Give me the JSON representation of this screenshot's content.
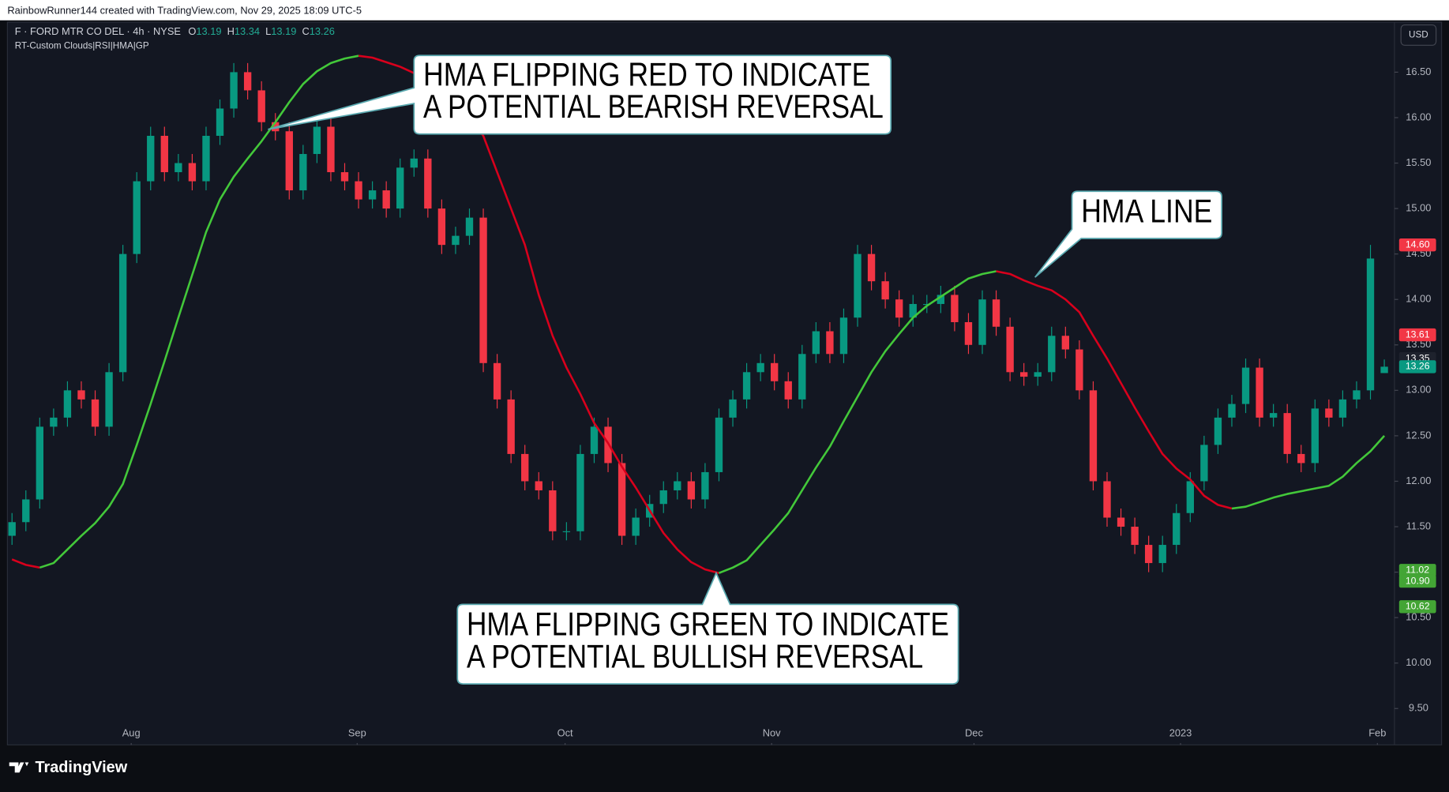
{
  "header": {
    "credit": "RainbowRunner144 created with TradingView.com, Nov 29, 2025 18:09 UTC-5",
    "logo": "TradingView",
    "currency": "USD"
  },
  "chart_data": {
    "type": "candlestick",
    "title": "F · FORD MTR CO DEL · 4h · NYSE",
    "subtitle": "RT-Custom Clouds|RSI|HMA|GP",
    "ohlc_letters": [
      "O",
      "H",
      "L",
      "C"
    ],
    "categories": [
      null,
      null,
      null,
      null,
      null,
      null,
      null,
      null,
      null,
      null,
      null,
      null,
      null,
      null,
      null,
      null,
      null,
      null,
      null,
      null,
      null,
      null,
      null,
      null,
      null,
      null,
      null,
      null,
      null,
      null,
      null,
      null,
      null,
      null,
      null,
      null,
      null,
      null,
      null,
      null,
      null,
      null,
      null,
      null,
      null,
      null,
      null,
      null,
      null,
      null,
      null,
      null,
      null,
      null,
      null,
      null,
      null,
      null,
      null,
      null,
      null,
      null,
      null,
      null,
      null,
      null,
      null,
      null,
      null,
      null,
      null,
      null,
      null,
      null,
      null,
      null,
      null,
      null,
      null,
      null,
      null,
      null,
      null,
      null,
      null,
      null,
      null,
      null,
      null,
      null,
      null,
      null,
      null,
      null,
      null,
      null,
      null,
      null,
      null,
      null
    ],
    "open": [
      11.4,
      11.55,
      11.8,
      12.6,
      12.7,
      13.0,
      12.9,
      12.6,
      13.2,
      14.5,
      15.3,
      15.8,
      15.4,
      15.5,
      15.3,
      15.8,
      16.1,
      16.5,
      16.3,
      15.95,
      15.85,
      15.2,
      15.6,
      15.9,
      15.4,
      15.3,
      15.1,
      15.2,
      15.0,
      15.45,
      15.55,
      15.0,
      14.6,
      14.7,
      14.9,
      13.3,
      12.9,
      12.3,
      12.0,
      11.9,
      11.45,
      11.45,
      12.3,
      12.6,
      12.2,
      11.4,
      11.6,
      11.75,
      11.9,
      12.0,
      11.8,
      12.1,
      12.7,
      12.9,
      13.2,
      13.3,
      13.1,
      12.9,
      13.4,
      13.65,
      13.4,
      13.8,
      14.5,
      14.2,
      14.0,
      13.8,
      13.95,
      13.95,
      14.05,
      13.75,
      13.5,
      14.0,
      13.7,
      13.2,
      13.15,
      13.2,
      13.6,
      13.45,
      13.0,
      12.0,
      11.6,
      11.5,
      11.3,
      11.1,
      11.3,
      11.65,
      12.0,
      12.4,
      12.7,
      12.85,
      13.25,
      12.7,
      12.75,
      12.3,
      12.2,
      12.8,
      12.7,
      12.9,
      13.0,
      13.19
    ],
    "high": [
      11.65,
      11.9,
      12.7,
      12.8,
      13.1,
      13.1,
      13.0,
      13.3,
      14.6,
      15.4,
      15.9,
      15.9,
      15.6,
      15.6,
      15.9,
      16.2,
      16.6,
      16.6,
      16.4,
      16.05,
      15.95,
      15.7,
      16.0,
      16.0,
      15.5,
      15.4,
      15.3,
      15.3,
      15.55,
      15.65,
      15.65,
      15.1,
      14.8,
      15.0,
      15.0,
      13.4,
      13.0,
      12.4,
      12.1,
      12.0,
      11.55,
      12.4,
      12.7,
      12.7,
      12.3,
      11.7,
      11.85,
      12.0,
      12.1,
      12.1,
      12.2,
      12.8,
      13.0,
      13.3,
      13.4,
      13.4,
      13.2,
      13.5,
      13.75,
      13.75,
      13.9,
      14.6,
      14.6,
      14.3,
      14.1,
      14.05,
      14.05,
      14.15,
      14.15,
      13.85,
      14.1,
      14.1,
      13.8,
      13.3,
      13.3,
      13.7,
      13.7,
      13.55,
      13.1,
      12.1,
      11.7,
      11.6,
      11.4,
      11.4,
      11.75,
      12.1,
      12.5,
      12.8,
      12.95,
      13.35,
      13.35,
      12.85,
      12.85,
      12.4,
      12.9,
      12.9,
      13.0,
      13.1,
      14.6,
      13.34
    ],
    "low": [
      11.3,
      11.45,
      11.7,
      12.5,
      12.6,
      12.8,
      12.5,
      12.5,
      13.1,
      14.4,
      15.2,
      15.3,
      15.3,
      15.2,
      15.2,
      15.7,
      16.0,
      16.2,
      15.85,
      15.75,
      15.1,
      15.1,
      15.5,
      15.3,
      15.2,
      15.0,
      15.0,
      14.9,
      14.9,
      15.35,
      14.9,
      14.5,
      14.5,
      14.6,
      13.2,
      12.8,
      12.2,
      11.9,
      11.8,
      11.35,
      11.35,
      11.35,
      12.2,
      12.1,
      11.3,
      11.3,
      11.5,
      11.65,
      11.8,
      11.7,
      11.7,
      12.0,
      12.6,
      12.8,
      13.1,
      13.0,
      12.8,
      12.8,
      13.3,
      13.3,
      13.3,
      13.7,
      14.1,
      13.9,
      13.7,
      13.7,
      13.85,
      13.85,
      13.65,
      13.4,
      13.4,
      13.6,
      13.1,
      13.05,
      13.05,
      13.1,
      13.35,
      12.9,
      11.9,
      11.5,
      11.4,
      11.2,
      11.0,
      11.0,
      11.2,
      11.55,
      11.9,
      12.3,
      12.6,
      12.75,
      12.6,
      12.6,
      12.2,
      12.1,
      12.1,
      12.6,
      12.6,
      12.8,
      12.9,
      13.19
    ],
    "close": [
      11.55,
      11.8,
      12.6,
      12.7,
      13.0,
      12.9,
      12.6,
      13.2,
      14.5,
      15.3,
      15.8,
      15.4,
      15.5,
      15.3,
      15.8,
      16.1,
      16.5,
      16.3,
      15.95,
      15.85,
      15.2,
      15.6,
      15.9,
      15.4,
      15.3,
      15.1,
      15.2,
      15.0,
      15.45,
      15.55,
      15.0,
      14.6,
      14.7,
      14.9,
      13.3,
      12.9,
      12.3,
      12.0,
      11.9,
      11.45,
      11.45,
      12.3,
      12.6,
      12.2,
      11.4,
      11.6,
      11.75,
      11.9,
      12.0,
      11.8,
      12.1,
      12.7,
      12.9,
      13.2,
      13.3,
      13.1,
      12.9,
      13.4,
      13.65,
      13.4,
      13.8,
      14.5,
      14.2,
      14.0,
      13.8,
      13.95,
      13.95,
      14.05,
      13.75,
      13.5,
      14.0,
      13.7,
      13.2,
      13.15,
      13.2,
      13.6,
      13.45,
      13.0,
      12.0,
      11.6,
      11.5,
      11.3,
      11.1,
      11.3,
      11.65,
      12.0,
      12.4,
      12.7,
      12.85,
      13.25,
      12.7,
      12.75,
      12.3,
      12.2,
      12.8,
      12.7,
      12.9,
      13.0,
      14.45,
      13.26
    ],
    "up_color": "#089981",
    "down_color": "#f23645",
    "hma": {
      "values": [
        11.14,
        11.08,
        11.05,
        11.1,
        11.25,
        11.4,
        11.54,
        11.72,
        11.97,
        12.4,
        12.85,
        13.32,
        13.8,
        14.27,
        14.74,
        15.1,
        15.35,
        15.55,
        15.74,
        15.95,
        16.17,
        16.37,
        16.51,
        16.6,
        16.65,
        16.68,
        16.66,
        16.61,
        16.56,
        16.49,
        16.41,
        16.32,
        16.18,
        16.0,
        15.8,
        15.4,
        15.0,
        14.6,
        14.05,
        13.6,
        13.25,
        12.96,
        12.64,
        12.42,
        12.16,
        11.93,
        11.68,
        11.43,
        11.25,
        11.11,
        11.03,
        10.99,
        11.05,
        11.13,
        11.3,
        11.47,
        11.65,
        11.9,
        12.15,
        12.38,
        12.66,
        12.93,
        13.2,
        13.43,
        13.62,
        13.8,
        13.93,
        14.03,
        14.13,
        14.23,
        14.28,
        14.31,
        14.28,
        14.21,
        14.15,
        14.1,
        14.0,
        13.86,
        13.6,
        13.35,
        13.08,
        12.81,
        12.55,
        12.3,
        12.14,
        12.02,
        11.84,
        11.74,
        11.7,
        11.72,
        11.77,
        11.82,
        11.86,
        11.89,
        11.92,
        11.95,
        12.05,
        12.2,
        12.33,
        12.5
      ],
      "rising_color": "#43c83a",
      "falling_color": "#d8001c"
    },
    "xlim": [
      -0.333,
      99.667
    ],
    "xticks": [
      {
        "value": 8.6,
        "label": "Aug"
      },
      {
        "value": 24.9,
        "label": "Sep"
      },
      {
        "value": 39.9,
        "label": "Oct"
      },
      {
        "value": 54.8,
        "label": "Nov"
      },
      {
        "value": 69.4,
        "label": "Dec"
      },
      {
        "value": 84.3,
        "label": "2023"
      },
      {
        "value": 98.5,
        "label": "Feb"
      }
    ],
    "ylim": [
      9.1,
      17.05
    ],
    "yticks": [
      {
        "value": 9.5,
        "label": "9.50"
      },
      {
        "value": 10,
        "label": "10.00"
      },
      {
        "value": 10.5,
        "label": "10.50"
      },
      {
        "value": 11,
        "label": "11.00"
      },
      {
        "value": 11.5,
        "label": "11.50"
      },
      {
        "value": 12,
        "label": "12.00"
      },
      {
        "value": 12.5,
        "label": "12.50"
      },
      {
        "value": 13,
        "label": "13.00"
      },
      {
        "value": 13.5,
        "label": "13.50"
      },
      {
        "value": 14,
        "label": "14.00"
      },
      {
        "value": 14.5,
        "label": "14.50"
      },
      {
        "value": 15,
        "label": "15.00"
      },
      {
        "value": 15.5,
        "label": "15.50"
      },
      {
        "value": 16,
        "label": "16.00"
      },
      {
        "value": 16.5,
        "label": "16.50"
      }
    ],
    "grid": false,
    "price_labels": [
      {
        "value": 14.6,
        "label": "14.60",
        "color": "#f23645"
      },
      {
        "value": 13.61,
        "label": "13.61",
        "color": "#f23645"
      },
      {
        "value": 13.35,
        "label": "13.35",
        "color": "#1e222d"
      },
      {
        "value": 13.26,
        "label": "13.26",
        "color": "#089981"
      },
      {
        "value": 11.02,
        "label": "11.02",
        "color": "#43a535"
      },
      {
        "value": 10.9,
        "label": "10.90",
        "color": "#43a535"
      },
      {
        "value": 10.62,
        "label": "10.62",
        "color": "#43a535"
      }
    ],
    "annotations": [
      {
        "lines": [
          "HMA FLIPPING RED TO INDICATE",
          "A POTENTIAL BEARISH REVERSAL"
        ]
      },
      {
        "lines": [
          "HMA LINE"
        ]
      },
      {
        "lines": [
          "HMA FLIPPING GREEN TO INDICATE",
          "A POTENTIAL BULLISH REVERSAL"
        ]
      }
    ]
  }
}
